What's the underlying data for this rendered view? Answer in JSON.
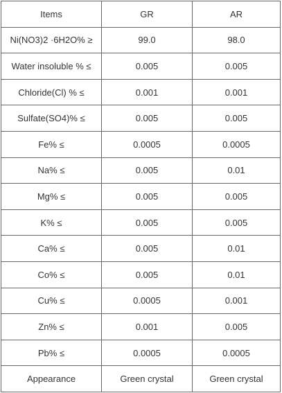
{
  "table": {
    "header": [
      "Items",
      "GR",
      "AR"
    ],
    "rows": [
      [
        "Ni(NO3)2 ·6H2O% ≥",
        "99.0",
        "98.0"
      ],
      [
        "Water insoluble % ≤",
        "0.005",
        "0.005"
      ],
      [
        "Chloride(Cl) % ≤",
        "0.001",
        "0.001"
      ],
      [
        "Sulfate(SO4)% ≤",
        "0.005",
        "0.005"
      ],
      [
        "Fe% ≤",
        "0.0005",
        "0.0005"
      ],
      [
        "Na% ≤",
        "0.005",
        "0.01"
      ],
      [
        "Mg% ≤",
        "0.005",
        "0.005"
      ],
      [
        "K% ≤",
        "0.005",
        "0.005"
      ],
      [
        "Ca% ≤",
        "0.005",
        "0.01"
      ],
      [
        "Co% ≤",
        "0.005",
        "0.01"
      ],
      [
        "Cu% ≤",
        "0.0005",
        "0.001"
      ],
      [
        "Zn% ≤",
        "0.001",
        "0.005"
      ],
      [
        "Pb% ≤",
        "0.0005",
        "0.0005"
      ],
      [
        "Appearance",
        "Green crystal",
        "Green crystal"
      ]
    ]
  }
}
